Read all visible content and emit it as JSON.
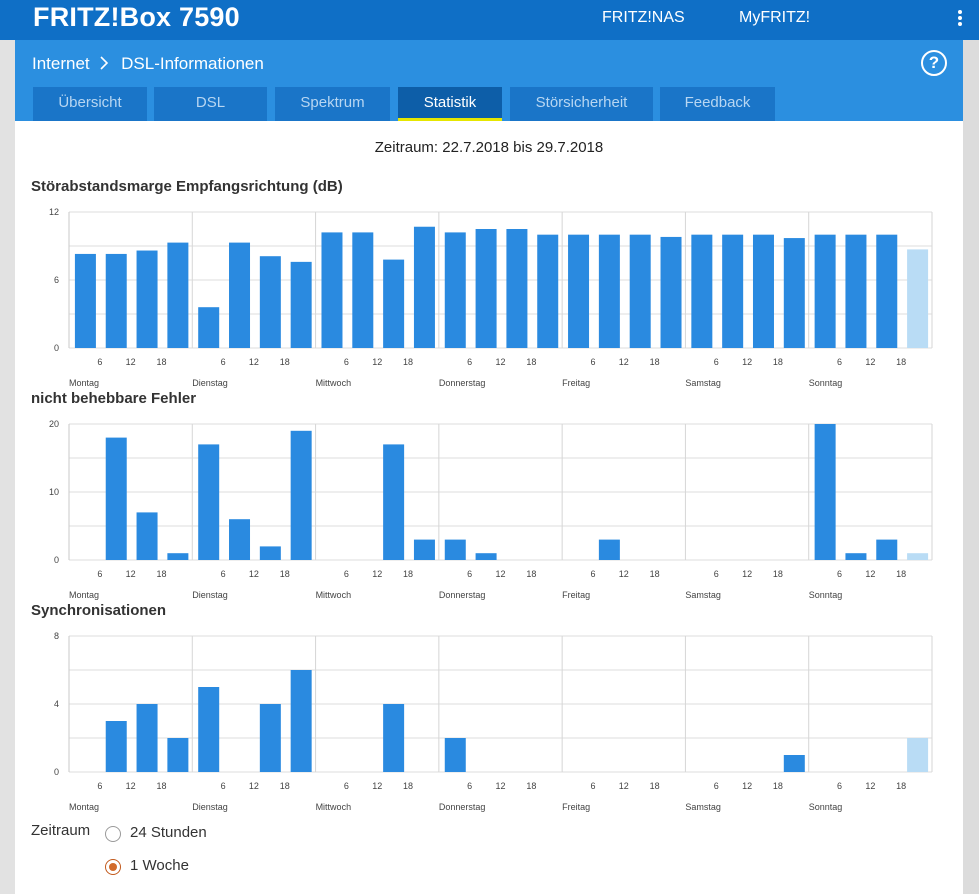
{
  "app": {
    "title": "FRITZ!Box 7590",
    "links": [
      "FRITZ!NAS",
      "MyFRITZ!"
    ]
  },
  "breadcrumb": {
    "parent": "Internet",
    "current": "DSL-Informationen"
  },
  "help": {
    "label": "?"
  },
  "tabs": [
    {
      "label": "Übersicht",
      "active": false
    },
    {
      "label": "DSL",
      "active": false
    },
    {
      "label": "Spektrum",
      "active": false
    },
    {
      "label": "Statistik",
      "active": true
    },
    {
      "label": "Störsicherheit",
      "active": false
    },
    {
      "label": "Feedback",
      "active": false
    }
  ],
  "period_text": "Zeitraum: 22.7.2018 bis 29.7.2018",
  "colors": {
    "bar": "#2a8ae0",
    "bar_current": "#b9dcf5",
    "grid": "#d9d9d9",
    "accent": "#0f6fc6"
  },
  "chart_data": [
    {
      "type": "bar",
      "title": "Störabstandsmarge Empfangsrichtung (dB)",
      "ylim": [
        0,
        12
      ],
      "yticks": [
        0,
        6,
        12
      ],
      "day_labels": [
        "Montag",
        "Dienstag",
        "Mittwoch",
        "Donnerstag",
        "Freitag",
        "Samstag",
        "Sonntag"
      ],
      "hour_ticks": [
        "6",
        "12",
        "18"
      ],
      "values": [
        8.3,
        8.3,
        8.6,
        9.3,
        3.6,
        9.3,
        8.1,
        7.6,
        10.2,
        10.2,
        7.8,
        10.7,
        10.2,
        10.5,
        10.5,
        10.0,
        10.0,
        10.0,
        10.0,
        9.8,
        10.0,
        10.0,
        10.0,
        9.7,
        10.0,
        10.0,
        10.0,
        8.7
      ],
      "current_index": 27,
      "grid": true
    },
    {
      "type": "bar",
      "title": "nicht behebbare Fehler",
      "ylim": [
        0,
        20
      ],
      "yticks": [
        0,
        10,
        20
      ],
      "day_labels": [
        "Montag",
        "Dienstag",
        "Mittwoch",
        "Donnerstag",
        "Freitag",
        "Samstag",
        "Sonntag"
      ],
      "hour_ticks": [
        "6",
        "12",
        "18"
      ],
      "values": [
        0,
        18,
        7,
        1,
        17,
        6,
        2,
        19,
        0,
        0,
        17,
        3,
        3,
        1,
        0,
        0,
        0,
        3,
        0,
        0,
        0,
        0,
        0,
        0,
        20,
        1,
        3,
        1
      ],
      "current_index": 27,
      "grid": true
    },
    {
      "type": "bar",
      "title": "Synchronisationen",
      "ylim": [
        0,
        8
      ],
      "yticks": [
        0,
        4,
        8
      ],
      "day_labels": [
        "Montag",
        "Dienstag",
        "Mittwoch",
        "Donnerstag",
        "Freitag",
        "Samstag",
        "Sonntag"
      ],
      "hour_ticks": [
        "6",
        "12",
        "18"
      ],
      "values": [
        0,
        3,
        4,
        2,
        5,
        0,
        4,
        6,
        0,
        0,
        4,
        0,
        2,
        0,
        0,
        0,
        0,
        0,
        0,
        0,
        0,
        0,
        0,
        1,
        0,
        0,
        0,
        2
      ],
      "current_index": 27,
      "grid": true
    }
  ],
  "zeitraum": {
    "label": "Zeitraum",
    "options": [
      {
        "label": "24 Stunden",
        "selected": false
      },
      {
        "label": "1 Woche",
        "selected": true
      }
    ]
  }
}
